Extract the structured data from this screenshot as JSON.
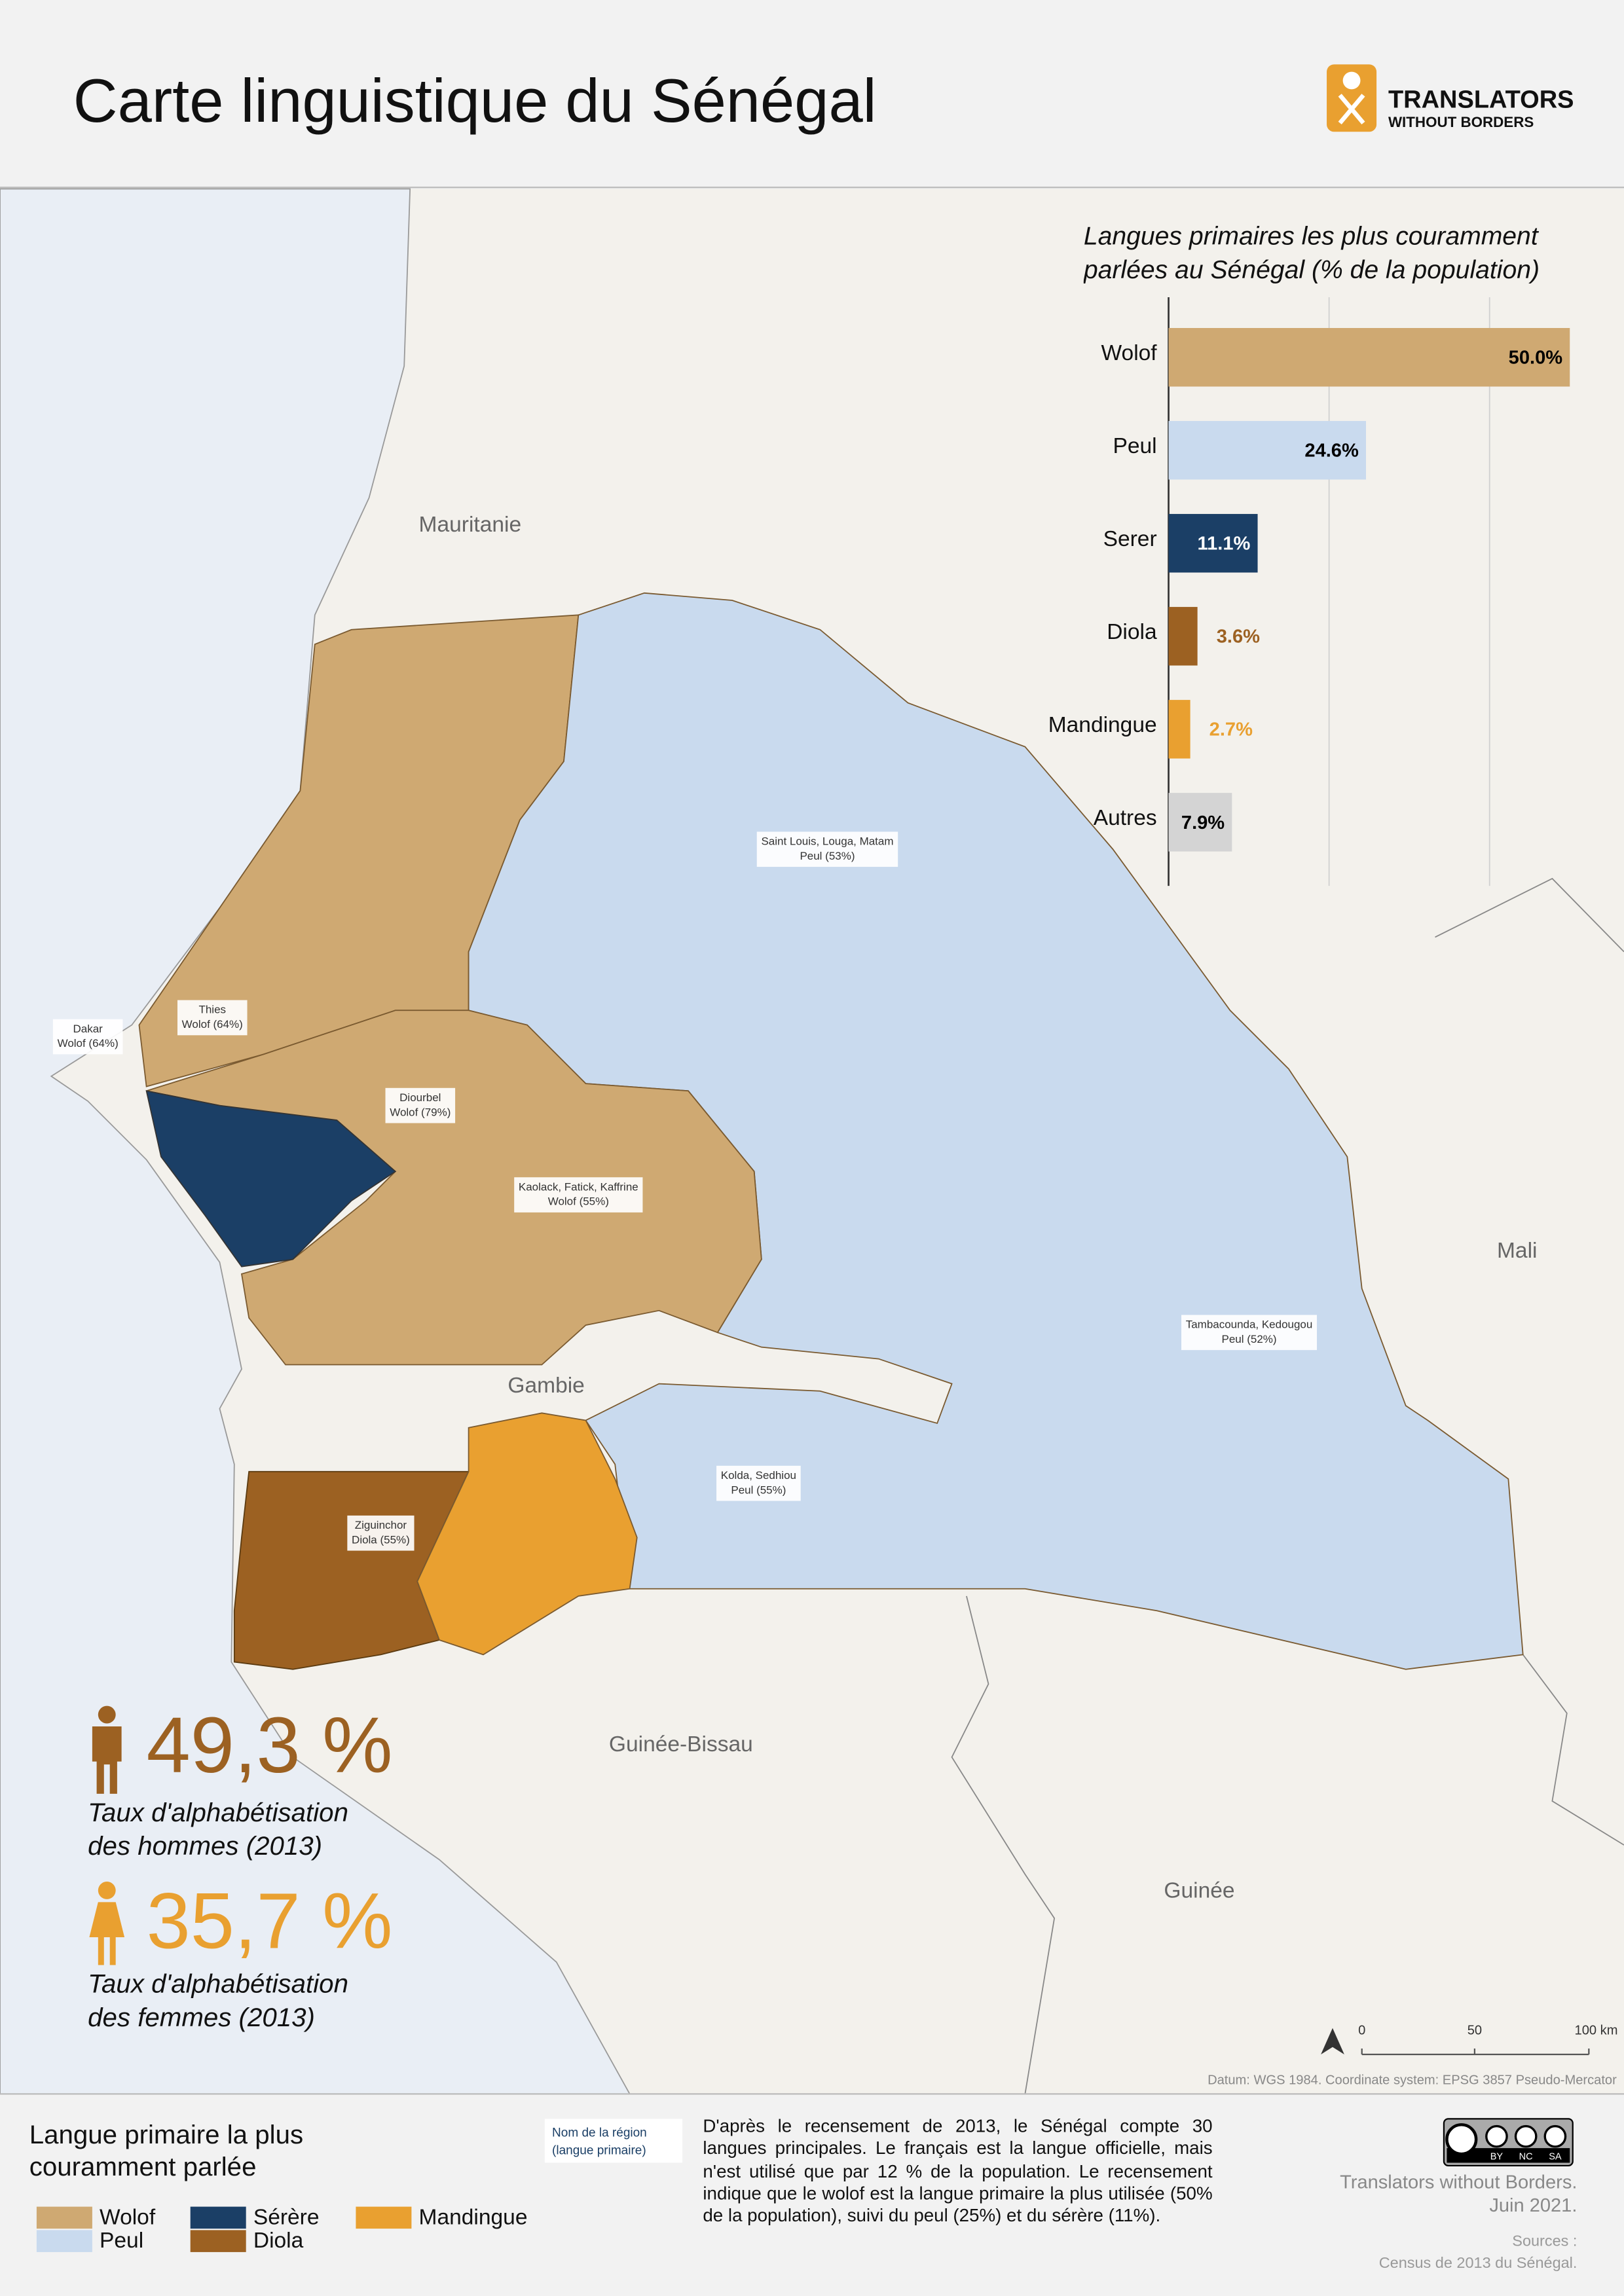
{
  "header": {
    "title": "Carte linguistique du Sénégal",
    "logo": [
      "TRANSLATORS",
      "WITHOUT BORDERS"
    ]
  },
  "chart_data": {
    "type": "bar",
    "orientation": "horizontal",
    "title": "Langues primaires les plus couramment parlées au Sénégal (% de la population)",
    "categories": [
      "Wolof",
      "Peul",
      "Serer",
      "Diola",
      "Mandingue",
      "Autres"
    ],
    "values": [
      50.0,
      24.6,
      11.1,
      3.6,
      2.7,
      7.9
    ],
    "value_labels": [
      "50.0%",
      "24.6%",
      "11.1%",
      "3.6%",
      "2.7%",
      "7.9%"
    ],
    "colors": [
      "#cfa972",
      "#c9daee",
      "#1b3f66",
      "#9c6122",
      "#e9a030",
      "#d4d4d4"
    ],
    "label_colors": [
      "#000000",
      "#000000",
      "#ffffff",
      "#9c6122",
      "#e9a030",
      "#000000"
    ],
    "xlim": [
      0,
      50
    ],
    "xticks": [
      20,
      40
    ],
    "tick_labels": false,
    "grid": true
  },
  "map": {
    "countries": [
      "Mauritanie",
      "Mali",
      "Gambie",
      "Guinée-Bissau",
      "Guinée"
    ],
    "regions": [
      {
        "name": "Saint Louis, Louga, Matam",
        "language": "Peul (53%)"
      },
      {
        "name": "Tambacounda, Kedougou",
        "language": "Peul (52%)"
      },
      {
        "name": "Kolda, Sedhiou",
        "language": "Peul (55%)"
      },
      {
        "name": "Kaolack, Fatick, Kaffrine",
        "language": "Wolof (55%)"
      },
      {
        "name": "Diourbel",
        "language": "Wolof (79%)"
      },
      {
        "name": "Thies",
        "language": "Wolof (64%)"
      },
      {
        "name": "Dakar",
        "language": "Wolof (64%)"
      },
      {
        "name": "Ziguinchor",
        "language": "Diola (55%)"
      }
    ],
    "scale": [
      "0",
      "50",
      "100 km"
    ],
    "datum": "Datum: WGS 1984. Coordinate system: EPSG 3857 Pseudo-Mercator"
  },
  "literacy": [
    {
      "figure": "49,3 %",
      "caption": [
        "Taux d'alphabétisation",
        "des hommes (2013)"
      ],
      "color": "#9c6122"
    },
    {
      "figure": "35,7 %",
      "caption": [
        "Taux d'alphabétisation",
        "des femmes (2013)"
      ],
      "color": "#e9a030"
    }
  ],
  "legend": {
    "title": [
      "Langue primaire la plus",
      "couramment parlée"
    ],
    "items": [
      {
        "label": "Wolof",
        "color": "#cfa972"
      },
      {
        "label": "Peul",
        "color": "#c9daee"
      },
      {
        "label": "Sérère",
        "color": "#1b3f66"
      },
      {
        "label": "Diola",
        "color": "#9c6122"
      },
      {
        "label": "Mandingue",
        "color": "#e9a030"
      }
    ],
    "key": [
      "Nom de la région",
      "(langue primaire)"
    ]
  },
  "note": "D'après le recensement de 2013, le Sénégal compte 30 langues principales. Le français est la langue officielle, mais n'est utilisé que par 12 % de la population. Le recensement indique que le wolof est la langue primaire la plus utilisée (50% de la population), suivi du peul (25%) et du sérère (11%).",
  "license": [
    "BY",
    "NC",
    "SA"
  ],
  "credit": [
    "Translators without Borders.",
    "Juin 2021."
  ],
  "sources": [
    "Sources :",
    "Census de 2013 du Sénégal."
  ]
}
